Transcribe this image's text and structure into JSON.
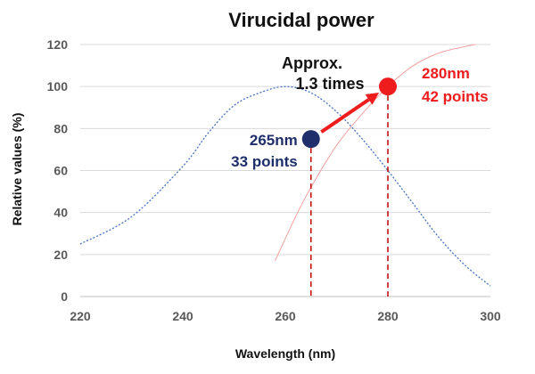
{
  "chart_data": {
    "type": "line",
    "title": "Virucidal power",
    "xlabel": "Wavelength (nm)",
    "ylabel": "Relative values (%)",
    "xlim": [
      220,
      300
    ],
    "ylim": [
      0,
      120
    ],
    "x_ticks": [
      220,
      240,
      260,
      280,
      300
    ],
    "y_ticks": [
      0,
      20,
      40,
      60,
      80,
      100,
      120
    ],
    "grid": "horizontal",
    "legend": "none",
    "series": [
      {
        "style": "dotted",
        "color": "#4472c4",
        "x": [
          220,
          230,
          240,
          245,
          250,
          255,
          260,
          265,
          270,
          275,
          280,
          285,
          290,
          295,
          300
        ],
        "y": [
          25,
          38,
          62,
          78,
          91,
          97,
          100,
          97,
          88,
          75,
          60,
          44,
          28,
          15,
          5
        ]
      },
      {
        "style": "solid",
        "color": "#f4a0a0",
        "x": [
          258,
          262,
          265,
          270,
          275,
          280,
          285,
          290,
          295,
          297
        ],
        "y": [
          17,
          38,
          52,
          72,
          87,
          100,
          110,
          116,
          119,
          120
        ]
      }
    ],
    "points": [
      {
        "id": "p265",
        "x": 265,
        "y": 75,
        "color": "#1f2f6b",
        "label_line1": "265nm",
        "label_line2": "33 points"
      },
      {
        "id": "p280",
        "x": 280,
        "y": 100,
        "color": "#ee1c1c",
        "label_line1": "280nm",
        "label_line2": "42 points"
      }
    ],
    "ratio_annotation": {
      "line1": "Approx.",
      "line2": "1.3 times"
    }
  },
  "colors": {
    "axis": "#bfbfbf",
    "grid": "#d9d9d9",
    "arrow": "#ee1c1c",
    "drop_line": "#c00000"
  }
}
